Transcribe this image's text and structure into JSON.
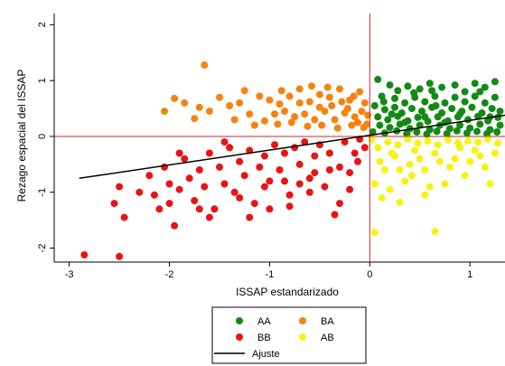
{
  "chart_data": {
    "type": "scatter",
    "xlabel": "ISSAP estandarizado",
    "ylabel": "Rezago espacial del ISSAP",
    "xlim": [
      -3.15,
      1.35
    ],
    "ylim": [
      -2.25,
      2.2
    ],
    "xticks": [
      {
        "value": -3,
        "label": "-3"
      },
      {
        "value": -2,
        "label": "-2"
      },
      {
        "value": -1,
        "label": "-1"
      },
      {
        "value": 0,
        "label": "0"
      },
      {
        "value": 1,
        "label": "1"
      }
    ],
    "yticks": [
      {
        "value": 2,
        "label": "2"
      },
      {
        "value": 1,
        "label": "1"
      },
      {
        "value": 0,
        "label": "0"
      },
      {
        "value": -1,
        "label": "-1"
      },
      {
        "value": -2,
        "label": "-2"
      }
    ],
    "reference_lines": {
      "x": 0,
      "y": 0,
      "color": "#d62728"
    },
    "series": [
      {
        "name": "AA",
        "color": "#138a13",
        "points": [
          [
            0.08,
            1.02
          ],
          [
            0.2,
            0.92
          ],
          [
            0.28,
            0.82
          ],
          [
            0.38,
            0.9
          ],
          [
            0.5,
            0.85
          ],
          [
            0.6,
            0.95
          ],
          [
            0.72,
            0.88
          ],
          [
            0.85,
            0.92
          ],
          [
            0.95,
            0.8
          ],
          [
            1.05,
            0.95
          ],
          [
            1.15,
            0.88
          ],
          [
            1.25,
            0.98
          ],
          [
            0.12,
            0.72
          ],
          [
            0.25,
            0.68
          ],
          [
            0.35,
            0.6
          ],
          [
            0.45,
            0.7
          ],
          [
            0.55,
            0.62
          ],
          [
            0.65,
            0.72
          ],
          [
            0.75,
            0.6
          ],
          [
            0.85,
            0.7
          ],
          [
            0.95,
            0.62
          ],
          [
            1.05,
            0.72
          ],
          [
            1.15,
            0.6
          ],
          [
            1.25,
            0.7
          ],
          [
            0.05,
            0.55
          ],
          [
            0.15,
            0.48
          ],
          [
            0.25,
            0.52
          ],
          [
            0.32,
            0.42
          ],
          [
            0.42,
            0.5
          ],
          [
            0.52,
            0.45
          ],
          [
            0.62,
            0.52
          ],
          [
            0.72,
            0.42
          ],
          [
            0.82,
            0.5
          ],
          [
            0.92,
            0.45
          ],
          [
            1.02,
            0.52
          ],
          [
            1.12,
            0.42
          ],
          [
            1.22,
            0.5
          ],
          [
            1.3,
            0.45
          ],
          [
            0.08,
            0.35
          ],
          [
            0.18,
            0.3
          ],
          [
            0.28,
            0.36
          ],
          [
            0.38,
            0.28
          ],
          [
            0.48,
            0.34
          ],
          [
            0.58,
            0.27
          ],
          [
            0.68,
            0.35
          ],
          [
            0.78,
            0.28
          ],
          [
            0.88,
            0.35
          ],
          [
            0.98,
            0.3
          ],
          [
            1.08,
            0.36
          ],
          [
            1.18,
            0.28
          ],
          [
            1.28,
            0.34
          ],
          [
            0.1,
            0.2
          ],
          [
            0.2,
            0.16
          ],
          [
            0.3,
            0.22
          ],
          [
            0.4,
            0.14
          ],
          [
            0.5,
            0.2
          ],
          [
            0.6,
            0.12
          ],
          [
            0.7,
            0.2
          ],
          [
            0.8,
            0.14
          ],
          [
            0.9,
            0.2
          ],
          [
            1.0,
            0.15
          ],
          [
            1.1,
            0.22
          ],
          [
            1.2,
            0.12
          ],
          [
            1.3,
            0.2
          ],
          [
            0.03,
            0.08
          ],
          [
            0.15,
            0.06
          ],
          [
            0.27,
            0.1
          ],
          [
            0.37,
            0.05
          ],
          [
            0.47,
            0.08
          ],
          [
            0.57,
            0.04
          ],
          [
            0.67,
            0.09
          ],
          [
            0.77,
            0.05
          ],
          [
            0.87,
            0.1
          ],
          [
            0.97,
            0.06
          ],
          [
            1.07,
            0.09
          ],
          [
            1.17,
            0.05
          ],
          [
            1.27,
            0.08
          ],
          [
            0.44,
            0.78
          ],
          [
            0.66,
            0.55
          ],
          [
            0.22,
            0.4
          ],
          [
            0.9,
            0.4
          ],
          [
            1.1,
            0.8
          ],
          [
            0.35,
            0.25
          ],
          [
            0.75,
            0.25
          ],
          [
            0.55,
            0.35
          ],
          [
            1.2,
            0.35
          ],
          [
            0.14,
            0.62
          ],
          [
            0.62,
            0.82
          ]
        ]
      },
      {
        "name": "BA",
        "color": "#f7820f",
        "points": [
          [
            -1.65,
            1.28
          ],
          [
            -1.95,
            0.68
          ],
          [
            -2.05,
            0.45
          ],
          [
            -1.85,
            0.6
          ],
          [
            -1.75,
            0.32
          ],
          [
            -1.7,
            0.52
          ],
          [
            -1.6,
            0.45
          ],
          [
            -1.5,
            0.7
          ],
          [
            -1.4,
            0.55
          ],
          [
            -1.3,
            0.6
          ],
          [
            -1.2,
            0.4
          ],
          [
            -1.1,
            0.72
          ],
          [
            -1.0,
            0.65
          ],
          [
            -0.9,
            0.58
          ],
          [
            -0.8,
            0.72
          ],
          [
            -0.7,
            0.85
          ],
          [
            -0.6,
            0.62
          ],
          [
            -0.5,
            0.75
          ],
          [
            -0.4,
            0.7
          ],
          [
            -0.3,
            0.85
          ],
          [
            -0.2,
            0.65
          ],
          [
            -0.1,
            0.8
          ],
          [
            -0.05,
            0.6
          ],
          [
            -0.95,
            0.4
          ],
          [
            -0.85,
            0.45
          ],
          [
            -0.75,
            0.35
          ],
          [
            -0.65,
            0.4
          ],
          [
            -0.55,
            0.3
          ],
          [
            -0.45,
            0.45
          ],
          [
            -0.35,
            0.3
          ],
          [
            -0.25,
            0.42
          ],
          [
            -0.15,
            0.35
          ],
          [
            -0.08,
            0.45
          ],
          [
            -0.02,
            0.38
          ],
          [
            -1.05,
            0.28
          ],
          [
            -0.92,
            0.22
          ],
          [
            -0.78,
            0.25
          ],
          [
            -0.62,
            0.18
          ],
          [
            -0.48,
            0.2
          ],
          [
            -0.32,
            0.15
          ],
          [
            -0.18,
            0.2
          ],
          [
            -0.06,
            0.16
          ],
          [
            -0.88,
            0.82
          ],
          [
            -0.58,
            0.9
          ],
          [
            -0.38,
            0.55
          ],
          [
            -0.22,
            0.5
          ],
          [
            -1.35,
            0.3
          ],
          [
            -1.15,
            0.2
          ],
          [
            -0.7,
            0.6
          ],
          [
            -0.28,
            0.62
          ],
          [
            -0.12,
            0.25
          ],
          [
            -1.25,
            0.82
          ],
          [
            -0.5,
            0.52
          ],
          [
            -0.03,
            0.22
          ],
          [
            -0.42,
            0.88
          ],
          [
            -0.16,
            0.72
          ]
        ]
      },
      {
        "name": "BB",
        "color": "#e81414",
        "points": [
          [
            -2.85,
            -2.12
          ],
          [
            -2.5,
            -2.15
          ],
          [
            -2.55,
            -1.2
          ],
          [
            -2.5,
            -0.9
          ],
          [
            -2.45,
            -1.45
          ],
          [
            -2.2,
            -0.7
          ],
          [
            -2.15,
            -1.05
          ],
          [
            -2.1,
            -1.3
          ],
          [
            -2.05,
            -0.55
          ],
          [
            -2.0,
            -0.85
          ],
          [
            -1.95,
            -1.6
          ],
          [
            -1.9,
            -0.95
          ],
          [
            -1.85,
            -0.4
          ],
          [
            -1.8,
            -0.75
          ],
          [
            -1.75,
            -1.15
          ],
          [
            -1.7,
            -0.6
          ],
          [
            -1.65,
            -0.9
          ],
          [
            -1.6,
            -0.3
          ],
          [
            -1.55,
            -1.3
          ],
          [
            -1.5,
            -0.55
          ],
          [
            -1.45,
            -0.85
          ],
          [
            -1.4,
            -0.2
          ],
          [
            -1.35,
            -1.0
          ],
          [
            -1.3,
            -0.45
          ],
          [
            -1.25,
            -0.7
          ],
          [
            -1.2,
            -0.25
          ],
          [
            -1.15,
            -1.2
          ],
          [
            -1.1,
            -0.55
          ],
          [
            -1.05,
            -0.35
          ],
          [
            -1.0,
            -0.8
          ],
          [
            -0.95,
            -0.15
          ],
          [
            -0.9,
            -0.6
          ],
          [
            -0.85,
            -0.3
          ],
          [
            -0.8,
            -1.05
          ],
          [
            -0.75,
            -0.2
          ],
          [
            -0.7,
            -0.5
          ],
          [
            -0.65,
            -0.1
          ],
          [
            -0.6,
            -0.75
          ],
          [
            -0.55,
            -0.35
          ],
          [
            -0.5,
            -0.15
          ],
          [
            -0.45,
            -0.9
          ],
          [
            -0.4,
            -0.3
          ],
          [
            -0.35,
            -1.4
          ],
          [
            -0.3,
            -0.55
          ],
          [
            -0.25,
            -0.1
          ],
          [
            -0.2,
            -0.65
          ],
          [
            -0.15,
            -0.3
          ],
          [
            -0.1,
            -0.05
          ],
          [
            -0.05,
            -0.2
          ],
          [
            -1.2,
            -1.45
          ],
          [
            -1.0,
            -1.3
          ],
          [
            -0.8,
            -1.25
          ],
          [
            -0.6,
            -1.0
          ],
          [
            -1.9,
            -0.3
          ],
          [
            -2.3,
            -1.0
          ],
          [
            -1.6,
            -1.45
          ],
          [
            -0.3,
            -1.2
          ],
          [
            -1.45,
            -0.1
          ],
          [
            -0.55,
            -0.65
          ],
          [
            -0.85,
            -0.8
          ],
          [
            -1.05,
            -0.9
          ],
          [
            -1.7,
            -1.3
          ],
          [
            -0.2,
            -0.95
          ],
          [
            -2.0,
            -1.2
          ],
          [
            -1.3,
            -1.1
          ],
          [
            -0.7,
            -0.85
          ],
          [
            -0.4,
            -0.6
          ],
          [
            -0.12,
            -0.45
          ]
        ]
      },
      {
        "name": "AB",
        "color": "#f7f215",
        "points": [
          [
            0.05,
            -1.72
          ],
          [
            0.65,
            -1.7
          ],
          [
            0.3,
            -1.18
          ],
          [
            0.55,
            -1.05
          ],
          [
            0.05,
            -0.85
          ],
          [
            0.15,
            -0.6
          ],
          [
            0.25,
            -0.35
          ],
          [
            0.35,
            -0.8
          ],
          [
            0.45,
            -0.25
          ],
          [
            0.55,
            -0.6
          ],
          [
            0.65,
            -0.3
          ],
          [
            0.75,
            -0.85
          ],
          [
            0.85,
            -0.4
          ],
          [
            0.95,
            -0.7
          ],
          [
            1.05,
            -0.25
          ],
          [
            1.15,
            -0.55
          ],
          [
            1.25,
            -0.3
          ],
          [
            0.08,
            -0.2
          ],
          [
            0.18,
            -0.1
          ],
          [
            0.28,
            -0.15
          ],
          [
            0.38,
            -0.05
          ],
          [
            0.48,
            -0.12
          ],
          [
            0.58,
            -0.08
          ],
          [
            0.68,
            -0.15
          ],
          [
            0.78,
            -0.06
          ],
          [
            0.88,
            -0.12
          ],
          [
            0.98,
            -0.08
          ],
          [
            1.08,
            -0.1
          ],
          [
            1.18,
            -0.05
          ],
          [
            1.28,
            -0.12
          ],
          [
            0.1,
            -0.45
          ],
          [
            0.2,
            -0.95
          ],
          [
            0.4,
            -0.5
          ],
          [
            0.6,
            -0.9
          ],
          [
            0.8,
            -0.55
          ],
          [
            1.0,
            -0.45
          ],
          [
            1.2,
            -0.85
          ],
          [
            0.12,
            -1.1
          ],
          [
            0.5,
            -0.4
          ],
          [
            0.9,
            -0.2
          ],
          [
            0.3,
            -0.6
          ],
          [
            0.7,
            -0.45
          ],
          [
            0.02,
            -0.05
          ],
          [
            0.42,
            -0.7
          ],
          [
            1.1,
            -0.35
          ],
          [
            0.22,
            -0.3
          ]
        ]
      }
    ],
    "fit_line": {
      "name": "Ajuste",
      "color": "#000000",
      "x1": -2.9,
      "y1": -0.75,
      "x2": 1.35,
      "y2": 0.38
    },
    "legend": {
      "placement": "bottom-center",
      "items": [
        {
          "label": "AA",
          "color": "#138a13",
          "kind": "marker"
        },
        {
          "label": "BA",
          "color": "#f7820f",
          "kind": "marker"
        },
        {
          "label": "BB",
          "color": "#e81414",
          "kind": "marker"
        },
        {
          "label": "AB",
          "color": "#f7f215",
          "kind": "marker"
        },
        {
          "label": "Ajuste",
          "color": "#000000",
          "kind": "line"
        }
      ]
    }
  }
}
